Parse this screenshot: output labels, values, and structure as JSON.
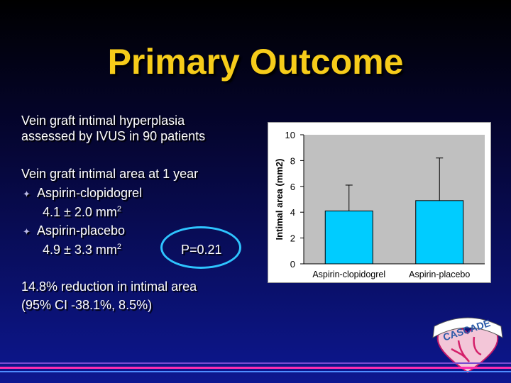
{
  "title": "Primary Outcome",
  "lines": {
    "l1": "Vein graft intimal hyperplasia",
    "l2": "assessed by IVUS in 90 patients",
    "l3": "Vein graft intimal area at 1 year",
    "b1": "Aspirin-clopidogrel",
    "v1": "4.1 ± 2.0 mm",
    "b2": "Aspirin-placebo",
    "v2": "4.9 ± 3.3 mm",
    "sup": "2",
    "pvalue": "P=0.21",
    "l4": "14.8% reduction in intimal area",
    "l5": "(95% CI -38.1%, 8.5%)"
  },
  "logo_text": "CASCADE",
  "colors": {
    "title": "#f6cc1a",
    "bar": "#00ccff",
    "ellipse": "#2ec4ff"
  },
  "chart_data": {
    "type": "bar",
    "categories": [
      "Aspirin-clopidogrel",
      "Aspirin-placebo"
    ],
    "values": [
      4.1,
      4.9
    ],
    "error_upper": [
      2.0,
      3.3
    ],
    "ylabel": "Intimal area (mm2)",
    "ylim": [
      0,
      10
    ],
    "yticks": [
      0,
      2,
      4,
      6,
      8,
      10
    ],
    "grid": false,
    "legend": "none"
  }
}
